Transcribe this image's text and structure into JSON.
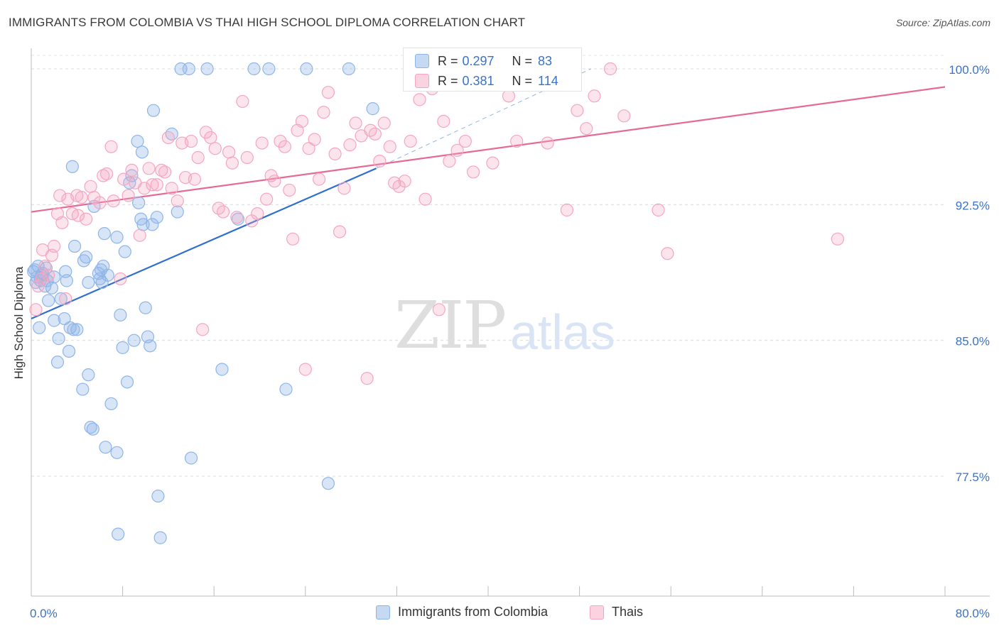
{
  "title": "IMMIGRANTS FROM COLOMBIA VS THAI HIGH SCHOOL DIPLOMA CORRELATION CHART",
  "source": "Source: ZipAtlas.com",
  "watermark": {
    "part1": "ZIP",
    "part2": "atlas"
  },
  "legend_stats": {
    "series1": {
      "r_label": "R = ",
      "r_value": "0.297",
      "n_label": "N = ",
      "n_value": "83"
    },
    "series2": {
      "r_label": "R = ",
      "r_value": "0.381",
      "n_label": "N = ",
      "n_value": "114"
    }
  },
  "chart_data": {
    "type": "scatter",
    "title": "IMMIGRANTS FROM COLOMBIA VS THAI HIGH SCHOOL DIPLOMA CORRELATION CHART",
    "xlabel": "",
    "ylabel": "High School Diploma",
    "xlim": [
      0,
      80
    ],
    "ylim": [
      70.5,
      101.5
    ],
    "x_tick_labels": [
      "0.0%",
      "80.0%"
    ],
    "y_ticks": [
      77.5,
      85.0,
      92.5,
      100.0
    ],
    "y_tick_labels": [
      "77.5%",
      "85.0%",
      "92.5%",
      "100.0%"
    ],
    "grid": true,
    "legend_position": "bottom",
    "colors": {
      "series1": "#8fb5e8",
      "series2": "#f4a6c0",
      "line1": "#2f6fd0",
      "line2": "#e56a97",
      "tick": "#3a73c9"
    },
    "series": [
      {
        "name": "Immigrants from Colombia",
        "trend": {
          "x": [
            0,
            30.2
          ],
          "y": [
            86.2,
            94.5
          ],
          "dashed_to": [
            49.0,
            100.0
          ]
        },
        "points": [
          [
            0.3,
            88.9
          ],
          [
            0.6,
            89.1
          ],
          [
            0.8,
            88.3
          ],
          [
            1.0,
            88.7
          ],
          [
            1.2,
            88.0
          ],
          [
            1.5,
            87.2
          ],
          [
            0.5,
            88.5
          ],
          [
            0.9,
            88.6
          ],
          [
            1.4,
            88.3
          ],
          [
            0.7,
            85.7
          ],
          [
            1.8,
            87.9
          ],
          [
            2.0,
            86.1
          ],
          [
            2.4,
            85.1
          ],
          [
            2.6,
            87.3
          ],
          [
            2.9,
            86.2
          ],
          [
            3.1,
            88.3
          ],
          [
            3.4,
            85.7
          ],
          [
            3.7,
            85.6
          ],
          [
            4.0,
            85.6
          ],
          [
            2.3,
            83.8
          ],
          [
            3.3,
            84.4
          ],
          [
            3.8,
            90.2
          ],
          [
            4.6,
            89.4
          ],
          [
            4.8,
            89.6
          ],
          [
            5.0,
            88.2
          ],
          [
            5.5,
            92.4
          ],
          [
            5.9,
            88.7
          ],
          [
            6.2,
            88.2
          ],
          [
            6.1,
            88.9
          ],
          [
            6.3,
            89.1
          ],
          [
            6.0,
            88.4
          ],
          [
            6.4,
            90.9
          ],
          [
            6.7,
            88.6
          ],
          [
            7.5,
            90.7
          ],
          [
            7.8,
            86.4
          ],
          [
            8.2,
            89.9
          ],
          [
            8.4,
            82.7
          ],
          [
            8.6,
            93.7
          ],
          [
            8.8,
            94.1
          ],
          [
            9.0,
            85.0
          ],
          [
            9.3,
            96.0
          ],
          [
            9.4,
            92.6
          ],
          [
            9.6,
            91.7
          ],
          [
            9.8,
            91.4
          ],
          [
            10.0,
            86.8
          ],
          [
            10.2,
            85.2
          ],
          [
            10.4,
            84.7
          ],
          [
            10.6,
            91.4
          ],
          [
            10.7,
            97.7
          ],
          [
            11.0,
            91.8
          ],
          [
            11.1,
            76.4
          ],
          [
            11.3,
            74.1
          ],
          [
            12.3,
            96.4
          ],
          [
            12.8,
            92.1
          ],
          [
            13.1,
            100.0
          ],
          [
            13.8,
            100.0
          ],
          [
            14.0,
            78.5
          ],
          [
            15.4,
            100.0
          ],
          [
            16.7,
            83.4
          ],
          [
            18.1,
            91.7
          ],
          [
            19.5,
            100.0
          ],
          [
            20.8,
            100.0
          ],
          [
            22.3,
            82.3
          ],
          [
            24.1,
            100.0
          ],
          [
            26.0,
            77.1
          ],
          [
            27.8,
            100.0
          ],
          [
            29.9,
            97.8
          ],
          [
            3.6,
            94.6
          ],
          [
            4.5,
            82.3
          ],
          [
            5.2,
            80.2
          ],
          [
            5.4,
            80.1
          ],
          [
            6.5,
            79.1
          ],
          [
            7.5,
            78.8
          ],
          [
            7.6,
            74.3
          ],
          [
            5.0,
            83.1
          ],
          [
            7.0,
            81.5
          ],
          [
            8.0,
            84.6
          ],
          [
            2.0,
            88.5
          ],
          [
            1.3,
            89.0
          ],
          [
            0.4,
            88.2
          ],
          [
            0.2,
            88.8
          ],
          [
            3.0,
            88.8
          ],
          [
            9.7,
            95.4
          ]
        ]
      },
      {
        "name": "Thais",
        "trend": {
          "x": [
            0,
            80
          ],
          "y": [
            92.1,
            99.0
          ]
        },
        "points": [
          [
            0.4,
            86.7
          ],
          [
            0.6,
            88.0
          ],
          [
            0.9,
            88.4
          ],
          [
            1.2,
            89.1
          ],
          [
            1.5,
            88.6
          ],
          [
            1.8,
            89.7
          ],
          [
            2.0,
            90.2
          ],
          [
            2.3,
            92.0
          ],
          [
            2.7,
            91.5
          ],
          [
            3.0,
            87.3
          ],
          [
            3.2,
            92.8
          ],
          [
            3.6,
            92.0
          ],
          [
            4.0,
            93.0
          ],
          [
            4.4,
            92.9
          ],
          [
            4.8,
            91.7
          ],
          [
            5.2,
            93.5
          ],
          [
            5.5,
            92.9
          ],
          [
            6.0,
            92.6
          ],
          [
            6.3,
            94.1
          ],
          [
            6.6,
            94.2
          ],
          [
            7.0,
            95.7
          ],
          [
            7.2,
            92.7
          ],
          [
            7.8,
            88.4
          ],
          [
            8.1,
            93.9
          ],
          [
            8.5,
            93.0
          ],
          [
            8.8,
            94.4
          ],
          [
            9.1,
            93.7
          ],
          [
            9.5,
            90.8
          ],
          [
            9.9,
            93.4
          ],
          [
            10.3,
            94.5
          ],
          [
            10.6,
            93.6
          ],
          [
            11.0,
            93.6
          ],
          [
            11.4,
            94.4
          ],
          [
            11.7,
            94.3
          ],
          [
            12.0,
            96.2
          ],
          [
            12.3,
            93.4
          ],
          [
            12.8,
            92.7
          ],
          [
            13.2,
            95.9
          ],
          [
            13.5,
            94.0
          ],
          [
            14.0,
            96.0
          ],
          [
            14.3,
            93.9
          ],
          [
            14.6,
            95.1
          ],
          [
            15.0,
            85.6
          ],
          [
            15.3,
            96.5
          ],
          [
            15.7,
            96.2
          ],
          [
            16.1,
            95.6
          ],
          [
            16.4,
            92.3
          ],
          [
            16.8,
            92.1
          ],
          [
            17.3,
            95.4
          ],
          [
            17.6,
            94.8
          ],
          [
            18.0,
            91.8
          ],
          [
            18.5,
            98.2
          ],
          [
            18.9,
            95.1
          ],
          [
            19.3,
            91.6
          ],
          [
            19.8,
            92.0
          ],
          [
            20.2,
            95.9
          ],
          [
            20.6,
            92.8
          ],
          [
            21.0,
            94.1
          ],
          [
            21.3,
            93.8
          ],
          [
            21.8,
            96.0
          ],
          [
            22.2,
            95.7
          ],
          [
            22.6,
            93.3
          ],
          [
            22.9,
            90.6
          ],
          [
            23.3,
            96.6
          ],
          [
            23.7,
            97.1
          ],
          [
            24.0,
            83.4
          ],
          [
            24.3,
            95.6
          ],
          [
            24.8,
            96.1
          ],
          [
            25.2,
            93.9
          ],
          [
            25.6,
            97.6
          ],
          [
            26.0,
            98.7
          ],
          [
            26.6,
            95.3
          ],
          [
            27.0,
            91.0
          ],
          [
            27.4,
            93.4
          ],
          [
            27.9,
            95.8
          ],
          [
            28.4,
            97.0
          ],
          [
            28.9,
            96.3
          ],
          [
            29.4,
            82.9
          ],
          [
            29.7,
            96.6
          ],
          [
            30.1,
            96.4
          ],
          [
            30.5,
            94.9
          ],
          [
            30.9,
            97.0
          ],
          [
            31.4,
            95.7
          ],
          [
            31.8,
            93.7
          ],
          [
            32.2,
            93.5
          ],
          [
            32.7,
            93.8
          ],
          [
            33.2,
            96.0
          ],
          [
            33.6,
            99.4
          ],
          [
            34.0,
            98.3
          ],
          [
            34.5,
            92.8
          ],
          [
            35.1,
            98.9
          ],
          [
            35.7,
            86.7
          ],
          [
            36.1,
            97.1
          ],
          [
            36.6,
            94.9
          ],
          [
            37.3,
            95.5
          ],
          [
            38.0,
            96.0
          ],
          [
            38.7,
            94.3
          ],
          [
            39.3,
            100.0
          ],
          [
            40.4,
            94.8
          ],
          [
            41.8,
            98.5
          ],
          [
            42.5,
            96.0
          ],
          [
            45.2,
            95.9
          ],
          [
            46.9,
            92.2
          ],
          [
            47.8,
            97.7
          ],
          [
            48.6,
            96.7
          ],
          [
            49.3,
            98.5
          ],
          [
            50.7,
            100.0
          ],
          [
            51.9,
            97.4
          ],
          [
            54.9,
            92.2
          ],
          [
            55.7,
            89.8
          ],
          [
            70.6,
            90.6
          ],
          [
            1.0,
            90.0
          ],
          [
            4.1,
            91.9
          ],
          [
            2.5,
            93.0
          ]
        ]
      }
    ]
  },
  "bottom_legend": {
    "item1": "Immigrants from Colombia",
    "item2": "Thais"
  }
}
